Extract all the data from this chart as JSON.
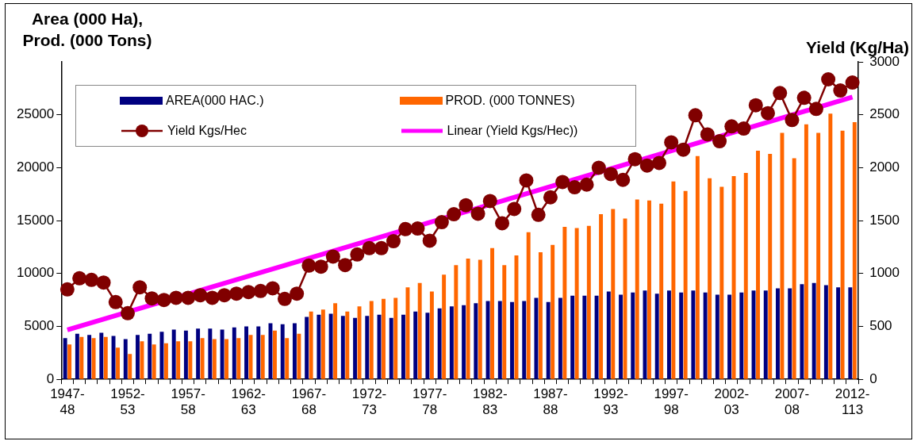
{
  "chart_data": {
    "type": "bar",
    "ylabel": "Area (000 Ha), Prod. (000 Tons)",
    "y2label": "Yield (Kg/Ha)",
    "categories": [
      "1947-48",
      null,
      null,
      null,
      null,
      "1952-53",
      null,
      null,
      null,
      null,
      "1957-58",
      null,
      null,
      null,
      null,
      "1962-63",
      null,
      null,
      null,
      null,
      "1967-68",
      null,
      null,
      null,
      null,
      "1972-73",
      null,
      null,
      null,
      null,
      "1977-78",
      null,
      null,
      null,
      null,
      "1982-83",
      null,
      null,
      null,
      null,
      "1987-88",
      null,
      null,
      null,
      null,
      "1992-93",
      null,
      null,
      null,
      null,
      "1997-98",
      null,
      null,
      null,
      null,
      "2002-03",
      null,
      null,
      null,
      null,
      "2007-08",
      null,
      null,
      null,
      null,
      "2012-113"
    ],
    "series": [
      {
        "name": "AREA(000 HAC.)",
        "color": "#000080",
        "values": [
          3900,
          4300,
          4200,
          4400,
          4100,
          3800,
          4200,
          4300,
          4500,
          4700,
          4600,
          4800,
          4800,
          4700,
          4900,
          5000,
          5000,
          5300,
          5200,
          5300,
          5900,
          6100,
          6200,
          6000,
          5800,
          6000,
          6100,
          5800,
          6100,
          6400,
          6300,
          6700,
          6900,
          7000,
          7200,
          7400,
          7400,
          7300,
          7400,
          7700,
          7300,
          7700,
          7900,
          7900,
          7900,
          8300,
          8000,
          8200,
          8400,
          8100,
          8400,
          8200,
          8400,
          8200,
          8000,
          8000,
          8200,
          8400,
          8400,
          8600,
          8600,
          9000,
          9100,
          8900,
          8700,
          8700
        ]
      },
      {
        "name": "PROD. (000 TONNES)",
        "color": "#ff6600",
        "values": [
          3300,
          4000,
          3900,
          4000,
          3000,
          2400,
          3600,
          3300,
          3400,
          3600,
          3600,
          3900,
          3800,
          3800,
          3900,
          4200,
          4200,
          4600,
          3900,
          4300,
          6400,
          6600,
          7200,
          6400,
          6900,
          7400,
          7600,
          7700,
          8700,
          9100,
          8300,
          9900,
          10800,
          11400,
          11300,
          12400,
          10800,
          11700,
          13900,
          12000,
          12700,
          14400,
          14300,
          14500,
          15600,
          16100,
          15200,
          17000,
          16900,
          16600,
          18700,
          17800,
          21100,
          19000,
          18200,
          19200,
          19500,
          21600,
          21300,
          23300,
          20900,
          24100,
          23300,
          25100,
          23500,
          24300
        ]
      },
      {
        "name": "Yield Kgs/Hec",
        "type": "line",
        "axis": "y2",
        "color": "#800000",
        "marker": "circle",
        "line_style": "solid",
        "values": [
          850,
          955,
          940,
          915,
          730,
          625,
          870,
          765,
          750,
          770,
          770,
          795,
          770,
          795,
          810,
          825,
          835,
          860,
          760,
          810,
          1075,
          1065,
          1160,
          1080,
          1180,
          1240,
          1240,
          1305,
          1420,
          1425,
          1310,
          1485,
          1560,
          1645,
          1565,
          1685,
          1475,
          1610,
          1880,
          1555,
          1720,
          1865,
          1815,
          1840,
          2000,
          1940,
          1885,
          2080,
          2020,
          2045,
          2240,
          2170,
          2495,
          2315,
          2250,
          2390,
          2370,
          2590,
          2515,
          2705,
          2450,
          2660,
          2555,
          2835,
          2730,
          2805
        ]
      },
      {
        "name": "Linear (Yield Kgs/Hec))",
        "type": "line",
        "axis": "y2",
        "color": "#ff00ff",
        "marker": "none",
        "line_style": "solid",
        "values": [
          468,
          null,
          null,
          null,
          null,
          null,
          null,
          null,
          null,
          null,
          null,
          null,
          null,
          null,
          null,
          null,
          null,
          null,
          null,
          null,
          null,
          null,
          null,
          null,
          null,
          null,
          null,
          null,
          null,
          null,
          null,
          null,
          null,
          null,
          null,
          null,
          null,
          null,
          null,
          null,
          null,
          null,
          null,
          null,
          null,
          null,
          null,
          null,
          null,
          null,
          null,
          null,
          null,
          null,
          null,
          null,
          null,
          null,
          null,
          null,
          null,
          null,
          null,
          null,
          null,
          2667
        ]
      }
    ],
    "ylim": [
      0,
      30000
    ],
    "yticks": [
      0,
      5000,
      10000,
      15000,
      20000,
      25000
    ],
    "y2lim": [
      0,
      3000
    ],
    "y2ticks": [
      0,
      500,
      1000,
      1500,
      2000,
      2500,
      3000
    ],
    "grid": false,
    "legend": "top left"
  }
}
